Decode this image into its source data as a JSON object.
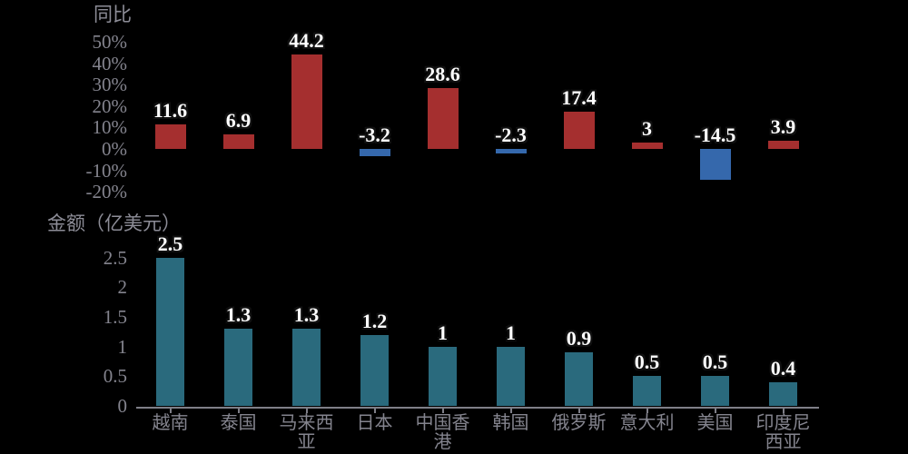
{
  "background_color": "#000000",
  "styles": {
    "tick_text_color": "#84848e",
    "title_text_color": "#8d8d97",
    "axis_line_color": "#7f7f88",
    "data_label_color": "#ffffff",
    "data_label_outline": "#111111"
  },
  "chart_data": [
    {
      "id": "yoy",
      "type": "bar",
      "title": "同比",
      "categories": [
        "越南",
        "泰国",
        "马来西亚",
        "日本",
        "中国香港",
        "韩国",
        "俄罗斯",
        "意大利",
        "美国",
        "印度尼西亚"
      ],
      "values": [
        11.6,
        6.9,
        44.2,
        -3.2,
        28.6,
        -2.3,
        17.4,
        3,
        -14.5,
        3.9
      ],
      "value_labels": [
        "11.6",
        "6.9",
        "44.2",
        "-3.2",
        "28.6",
        "-2.3",
        "17.4",
        "3",
        "-14.5",
        "3.9"
      ],
      "ylim": [
        -20,
        50
      ],
      "yticks": [
        50,
        40,
        30,
        20,
        10,
        0,
        -10,
        -20
      ],
      "ytick_labels": [
        "50%",
        "40%",
        "30%",
        "20%",
        "10%",
        "0%",
        "-10%",
        "-20%"
      ],
      "positive_color": "#a52f2f",
      "negative_color": "#3568ac",
      "grid": false,
      "legend": "none",
      "show_x_axis": false
    },
    {
      "id": "amount",
      "type": "bar",
      "title": "金额（亿美元）",
      "categories": [
        "越南",
        "泰国",
        "马来西亚",
        "日本",
        "中国香港",
        "韩国",
        "俄罗斯",
        "意大利",
        "美国",
        "印度尼西亚"
      ],
      "x_display_labels": [
        "越南",
        "泰国",
        "马来西\n亚",
        "日本",
        "中国香\n港",
        "韩国",
        "俄罗斯",
        "意大利",
        "美国",
        "印度尼\n西亚"
      ],
      "values": [
        2.5,
        1.3,
        1.3,
        1.2,
        1,
        1,
        0.9,
        0.5,
        0.5,
        0.4
      ],
      "value_labels": [
        "2.5",
        "1.3",
        "1.3",
        "1.2",
        "1",
        "1",
        "0.9",
        "0.5",
        "0.5",
        "0.4"
      ],
      "ylim": [
        0,
        2.5
      ],
      "yticks": [
        2.5,
        2,
        1.5,
        1,
        0.5,
        0
      ],
      "ytick_labels": [
        "2.5",
        "2",
        "1.5",
        "1",
        "0.5",
        "0"
      ],
      "positive_color": "#2a6a7d",
      "negative_color": "#2a6a7d",
      "grid": false,
      "legend": "none",
      "show_x_axis": true
    }
  ]
}
